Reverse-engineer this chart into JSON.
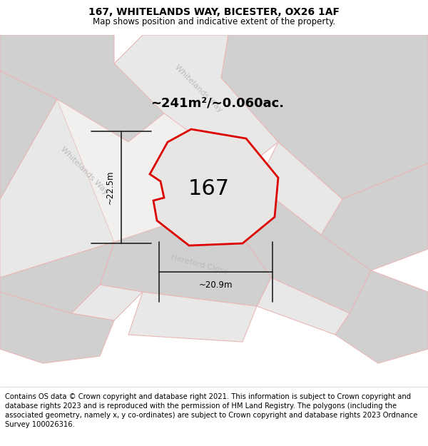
{
  "title": "167, WHITELANDS WAY, BICESTER, OX26 1AF",
  "subtitle": "Map shows position and indicative extent of the property.",
  "footer": "Contains OS data © Crown copyright and database right 2021. This information is subject to Crown copyright and database rights 2023 and is reproduced with the permission of HM Land Registry. The polygons (including the associated geometry, namely x, y co-ordinates) are subject to Crown copyright and database rights 2023 Ordnance Survey 100026316.",
  "area_label": "~241m²/~0.060ac.",
  "property_label": "167",
  "width_label": "~20.9m",
  "height_label": "~22.5m",
  "title_fontsize": 10,
  "subtitle_fontsize": 8.5,
  "footer_fontsize": 7.2,
  "road_color": "#e8b8b8",
  "block_fill": "#d0d0d0",
  "road_fill": "#e8e8e8",
  "white_fill": "#ffffff",
  "map_bg": "#f2f0ee",
  "property_outline_color": "#dd0000",
  "property_fill": "#e8e6e4",
  "dim_line_color": "#222222",
  "label_color": "#cccccc",
  "road_label_color": "#bbbbbb"
}
